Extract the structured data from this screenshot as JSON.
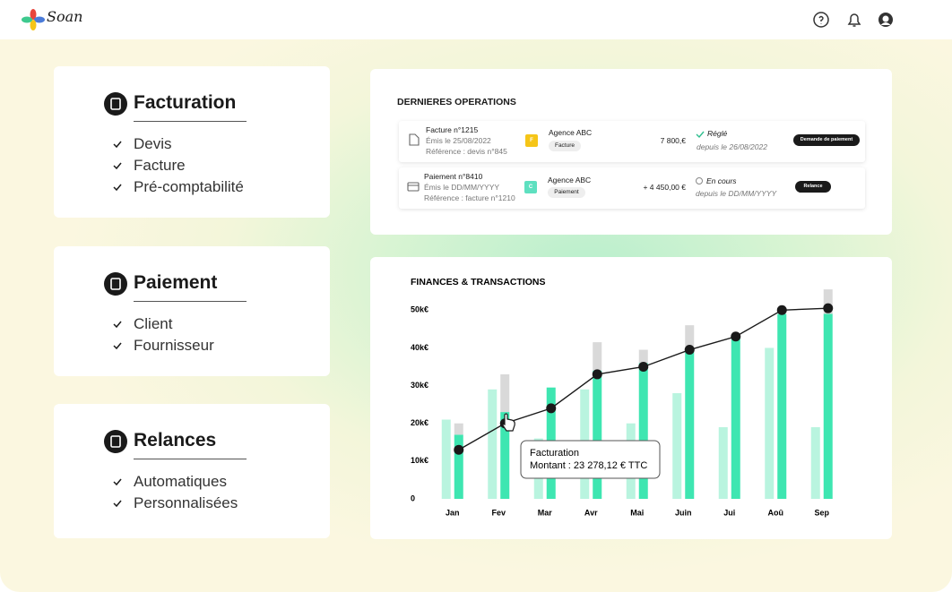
{
  "header": {
    "logo": "Soan"
  },
  "features": [
    {
      "title": "Facturation",
      "items": [
        "Devis",
        "Facture",
        "Pré-comptabilité"
      ]
    },
    {
      "title": "Paiement",
      "items": [
        "Client",
        "Fournisseur"
      ]
    },
    {
      "title": "Relances",
      "items": [
        "Automatiques",
        "Personnalisées"
      ]
    }
  ],
  "operations": {
    "title": "DERNIERES OPERATIONS",
    "rows": [
      {
        "document": "Facture n°1215",
        "date": "Émis le 25/08/2022",
        "reference": "Référence : devis n°845",
        "initial": "F",
        "client": "Agence ABC",
        "tag": "Facture",
        "amount": "7 800,€",
        "status": "Réglé",
        "status_date": "depuis le 26/08/2022",
        "action": "Demande de paiement"
      },
      {
        "document": "Paiement n°8410",
        "date": "Émis le DD/MM/YYYY",
        "reference": "Référence : facture n°1210",
        "initial": "C",
        "client": "Agence ABC",
        "tag": "Paiement",
        "amount": "+ 4 450,00 €",
        "status": "En cours",
        "status_date": "depuis le DD/MM/YYYY",
        "action": "Relance"
      }
    ]
  },
  "chart_data": {
    "type": "bar",
    "title": "FINANCES & TRANSACTIONS",
    "categories": [
      "Jan",
      "Fev",
      "Mar",
      "Avr",
      "Mai",
      "Juin",
      "Jui",
      "Aoû",
      "Sep"
    ],
    "series": [
      {
        "type": "bar",
        "color": "#b9f4df",
        "values": [
          21000,
          29000,
          16000,
          29000,
          20000,
          28000,
          19000,
          40000,
          19000
        ]
      },
      {
        "type": "bar",
        "color": "#3ee6b1",
        "values": [
          17000,
          23000,
          29500,
          34000,
          36000,
          40000,
          43000,
          49000,
          49000
        ]
      },
      {
        "type": "bar",
        "stacked": true,
        "color": "#d9d9d9",
        "values": [
          3000,
          10000,
          0,
          7500,
          3500,
          6000,
          0,
          0,
          6500
        ]
      },
      {
        "type": "line",
        "color": "#1a1a1a",
        "values": [
          13000,
          20000,
          24000,
          33000,
          35000,
          39500,
          43000,
          50000,
          50500
        ]
      }
    ],
    "ylim": [
      0,
      56000
    ],
    "yticks": [
      0,
      {
        "value": 10000,
        "label": "10k€"
      },
      {
        "value": 20000,
        "label": "20k€"
      },
      {
        "value": 30000,
        "label": "30k€"
      },
      {
        "value": 40000,
        "label": "40k€"
      },
      {
        "value": 50000,
        "label": "50k€"
      }
    ],
    "tooltip": {
      "title": "Facturation",
      "text": "Montant : 23 278,12 € TTC"
    }
  }
}
